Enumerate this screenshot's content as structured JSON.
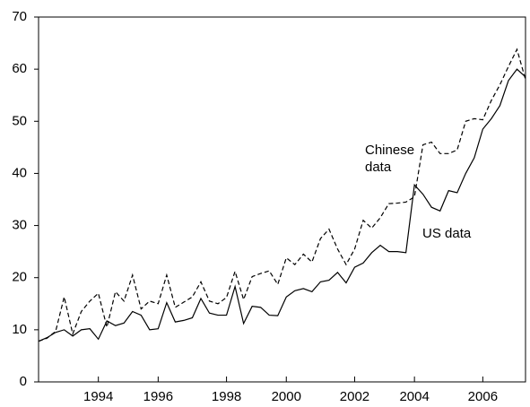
{
  "chart_data": {
    "type": "line",
    "categories": [
      null,
      null,
      null,
      null,
      null,
      null,
      null,
      "1994",
      null,
      null,
      null,
      null,
      null,
      null,
      "1996",
      null,
      null,
      null,
      null,
      null,
      null,
      null,
      "1998",
      null,
      null,
      null,
      null,
      null,
      null,
      "2000",
      null,
      null,
      null,
      null,
      null,
      null,
      null,
      "2002",
      null,
      null,
      null,
      null,
      null,
      null,
      "2004",
      null,
      null,
      null,
      null,
      null,
      null,
      null,
      "2006",
      null,
      null,
      null,
      null,
      null
    ],
    "series": [
      {
        "name": "Chinese data",
        "color": "#000000",
        "style": "dashed",
        "values": [
          7.8,
          8.4,
          9.7,
          16.3,
          9.2,
          13.5,
          15.5,
          17.0,
          10.5,
          17.3,
          15.5,
          20.5,
          14.0,
          15.5,
          15.0,
          20.5,
          14.3,
          15.3,
          16.3,
          19.2,
          15.5,
          15.0,
          16.2,
          21.2,
          15.8,
          20.2,
          20.8,
          21.3,
          18.7,
          23.8,
          22.5,
          24.5,
          23.0,
          27.5,
          29.3,
          25.5,
          22.5,
          25.5,
          31.0,
          29.5,
          31.5,
          34.2,
          34.3,
          34.5,
          35.5,
          45.5,
          46.0,
          43.8,
          43.8,
          44.5,
          50.0,
          50.5,
          50.3,
          54.0,
          57.0,
          60.5,
          63.8,
          58.0
        ]
      },
      {
        "name": "US data",
        "color": "#000000",
        "style": "solid",
        "values": [
          7.8,
          8.5,
          9.5,
          10.0,
          8.8,
          10.0,
          10.2,
          8.2,
          11.7,
          10.8,
          11.3,
          13.5,
          12.8,
          10.0,
          10.2,
          15.2,
          11.5,
          11.8,
          12.3,
          16.0,
          13.2,
          12.8,
          12.8,
          18.3,
          11.2,
          14.5,
          14.3,
          12.8,
          12.7,
          16.3,
          17.5,
          17.9,
          17.3,
          19.2,
          19.5,
          21.0,
          19.0,
          22.0,
          22.8,
          24.8,
          26.2,
          25.0,
          25.0,
          24.8,
          37.8,
          36.0,
          33.5,
          32.8,
          36.7,
          36.3,
          40.0,
          43.0,
          48.5,
          50.5,
          53.0,
          57.8,
          60.0,
          58.5
        ]
      }
    ],
    "ylim": [
      0,
      70
    ],
    "yticks": [
      0,
      10,
      20,
      30,
      40,
      50,
      60,
      70
    ],
    "grid": false
  }
}
